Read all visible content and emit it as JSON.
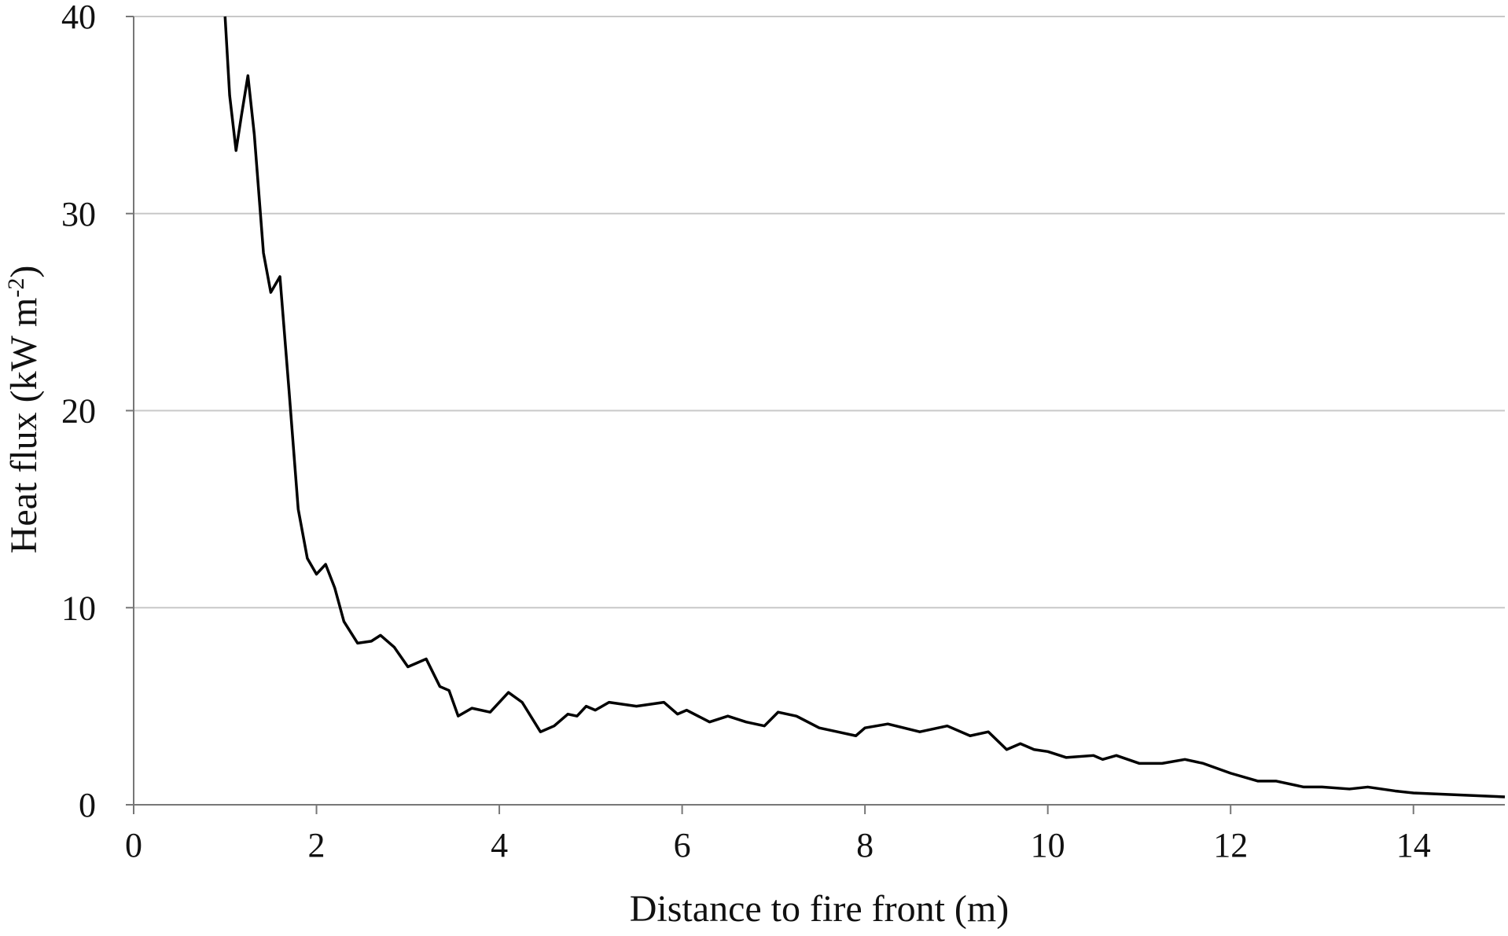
{
  "chart_data": {
    "type": "line",
    "xlabel": "Distance to fire front (m)",
    "ylabel": {
      "text": "Heat flux (kW m",
      "superscript": "-2",
      "close": ")"
    },
    "x": [
      1.0,
      1.05,
      1.12,
      1.18,
      1.25,
      1.32,
      1.42,
      1.5,
      1.6,
      1.7,
      1.8,
      1.9,
      2.0,
      2.1,
      2.2,
      2.3,
      2.45,
      2.6,
      2.7,
      2.85,
      3.0,
      3.1,
      3.2,
      3.35,
      3.45,
      3.55,
      3.7,
      3.9,
      4.1,
      4.25,
      4.45,
      4.6,
      4.75,
      4.85,
      4.95,
      5.05,
      5.2,
      5.5,
      5.8,
      5.95,
      6.05,
      6.3,
      6.5,
      6.7,
      6.9,
      7.05,
      7.25,
      7.5,
      7.7,
      7.9,
      8.0,
      8.25,
      8.6,
      8.9,
      9.15,
      9.35,
      9.55,
      9.7,
      9.85,
      10.0,
      10.2,
      10.5,
      10.6,
      10.75,
      11.0,
      11.25,
      11.5,
      11.7,
      12.0,
      12.3,
      12.5,
      12.8,
      13.0,
      13.3,
      13.5,
      13.8,
      14.0,
      14.5,
      15.0
    ],
    "series": [
      {
        "color": "#000000",
        "values": [
          40,
          36,
          33.2,
          35,
          37,
          34,
          28,
          26,
          26.8,
          21,
          15,
          12.5,
          11.7,
          12.2,
          11,
          9.3,
          8.2,
          8.3,
          8.6,
          8,
          7,
          7.2,
          7.4,
          6,
          5.8,
          4.5,
          4.9,
          4.7,
          5.7,
          5.2,
          3.7,
          4,
          4.6,
          4.5,
          5,
          4.8,
          5.2,
          5.0,
          5.2,
          4.6,
          4.8,
          4.2,
          4.5,
          4.2,
          4,
          4.7,
          4.5,
          3.9,
          3.7,
          3.5,
          3.9,
          4.1,
          3.7,
          4.0,
          3.5,
          3.7,
          2.8,
          3.1,
          2.8,
          2.7,
          2.4,
          2.5,
          2.3,
          2.5,
          2.1,
          2.1,
          2.3,
          2.1,
          1.6,
          1.2,
          1.2,
          0.9,
          0.9,
          0.8,
          0.9,
          0.7,
          0.6,
          0.5,
          0.4
        ]
      }
    ],
    "xlim": [
      0,
      15
    ],
    "xticks": [
      0,
      2,
      4,
      6,
      8,
      10,
      12,
      14
    ],
    "ylim": [
      0,
      40
    ],
    "yticks": [
      0,
      10,
      20,
      30,
      40
    ],
    "grid": true
  }
}
